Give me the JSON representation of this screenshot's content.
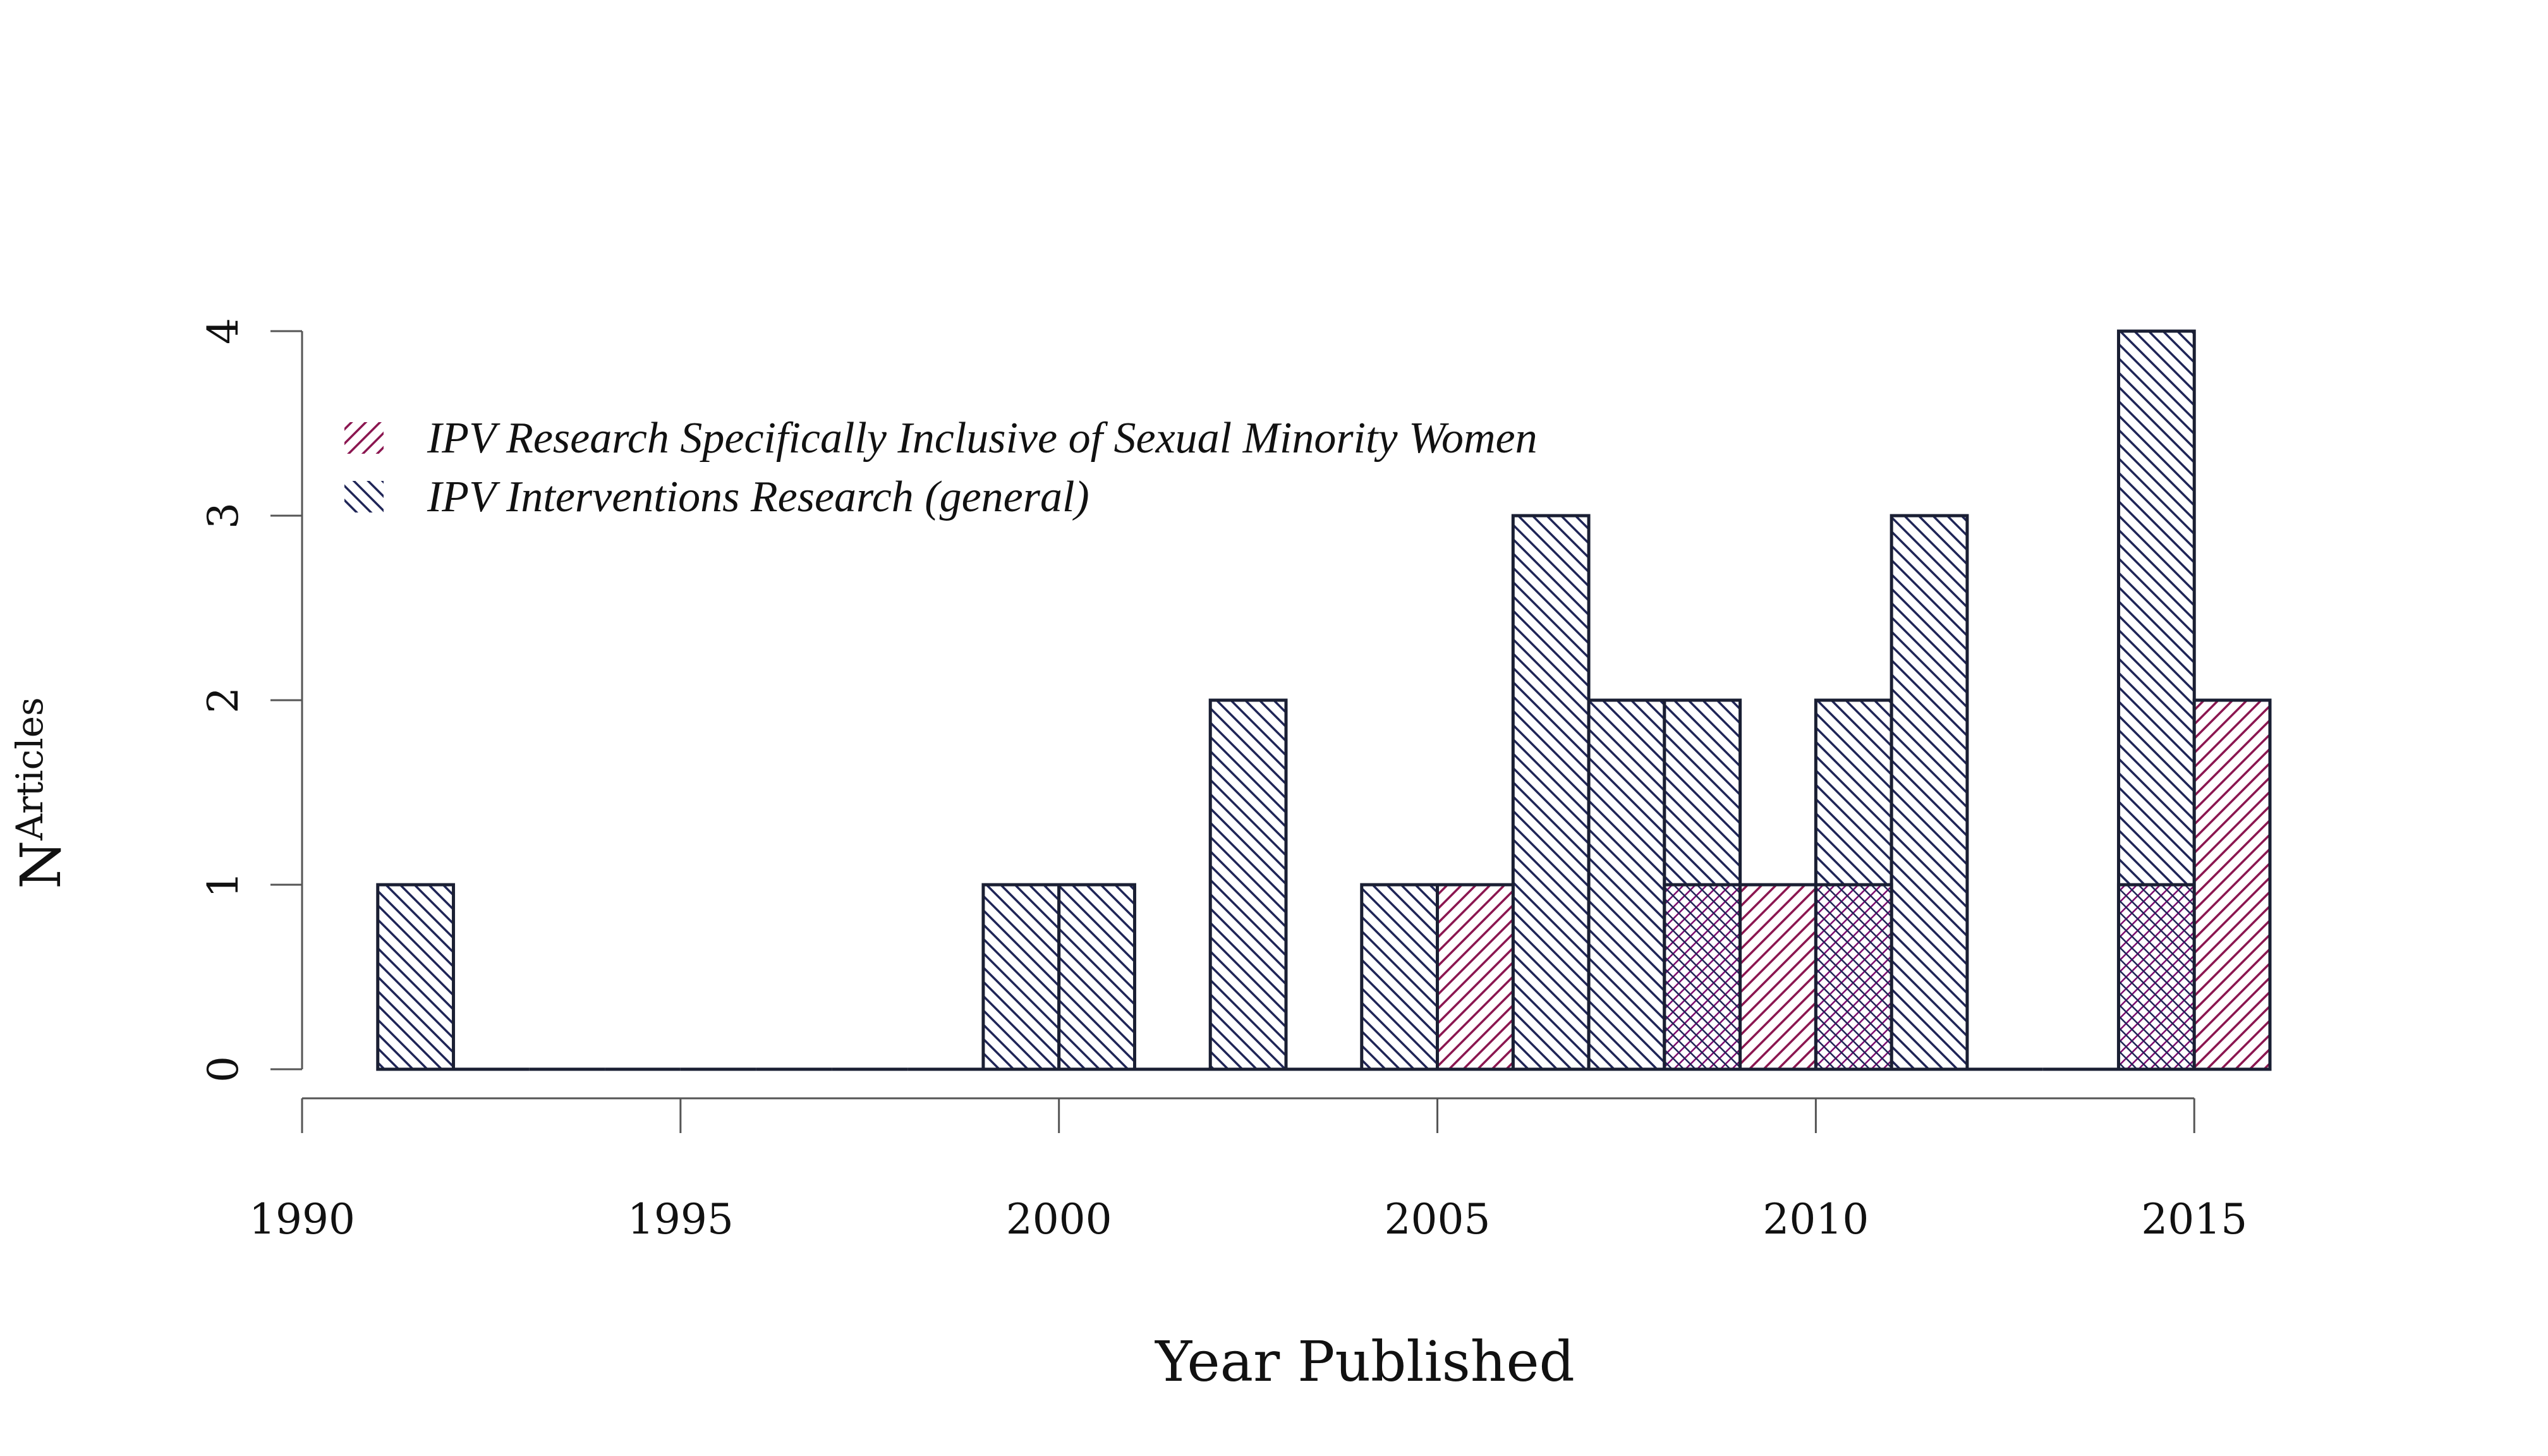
{
  "chart_data": {
    "type": "bar",
    "xlabel": "Year Published",
    "ylabel_main": "N",
    "ylabel_sub": "Articles",
    "x_ticks": [
      "1990",
      "1995",
      "2000",
      "2005",
      "2010",
      "2015"
    ],
    "y_ticks": [
      "0",
      "1",
      "2",
      "3",
      "4"
    ],
    "xlim": [
      1990,
      2016
    ],
    "ylim": [
      0,
      4
    ],
    "legend_position": "top-left",
    "colors": {
      "general": "#1f2557",
      "sexual_minority": "#8b1650",
      "overlap": "#7a0a6e",
      "outline": "#1a1f33"
    },
    "series": [
      {
        "name": "IPV Research Specifically Inclusive of Sexual Minority Women",
        "key": "sexual_minority",
        "bins": [
          {
            "start": 2005,
            "end": 2006,
            "value": 1
          },
          {
            "start": 2008,
            "end": 2009,
            "value": 1
          },
          {
            "start": 2009,
            "end": 2010,
            "value": 1
          },
          {
            "start": 2010,
            "end": 2011,
            "value": 1
          },
          {
            "start": 2014,
            "end": 2015,
            "value": 1
          },
          {
            "start": 2015,
            "end": 2016,
            "value": 2
          }
        ]
      },
      {
        "name": "IPV Interventions Research (general)",
        "key": "general",
        "bins": [
          {
            "start": 1991,
            "end": 1992,
            "value": 1
          },
          {
            "start": 1992,
            "end": 1993,
            "value": 0
          },
          {
            "start": 1993,
            "end": 1994,
            "value": 0
          },
          {
            "start": 1994,
            "end": 1995,
            "value": 0
          },
          {
            "start": 1995,
            "end": 1996,
            "value": 0
          },
          {
            "start": 1996,
            "end": 1997,
            "value": 0
          },
          {
            "start": 1997,
            "end": 1998,
            "value": 0
          },
          {
            "start": 1998,
            "end": 1999,
            "value": 0
          },
          {
            "start": 1999,
            "end": 2000,
            "value": 1
          },
          {
            "start": 2000,
            "end": 2001,
            "value": 1
          },
          {
            "start": 2001,
            "end": 2002,
            "value": 0
          },
          {
            "start": 2002,
            "end": 2003,
            "value": 2
          },
          {
            "start": 2003,
            "end": 2004,
            "value": 0
          },
          {
            "start": 2004,
            "end": 2005,
            "value": 1
          },
          {
            "start": 2005,
            "end": 2006,
            "value": 0
          },
          {
            "start": 2006,
            "end": 2007,
            "value": 3
          },
          {
            "start": 2007,
            "end": 2008,
            "value": 2
          },
          {
            "start": 2008,
            "end": 2009,
            "value": 2
          },
          {
            "start": 2009,
            "end": 2010,
            "value": 0
          },
          {
            "start": 2010,
            "end": 2011,
            "value": 2
          },
          {
            "start": 2011,
            "end": 2012,
            "value": 3
          },
          {
            "start": 2012,
            "end": 2013,
            "value": 0
          },
          {
            "start": 2013,
            "end": 2014,
            "value": 0
          },
          {
            "start": 2014,
            "end": 2015,
            "value": 4
          }
        ]
      }
    ]
  }
}
